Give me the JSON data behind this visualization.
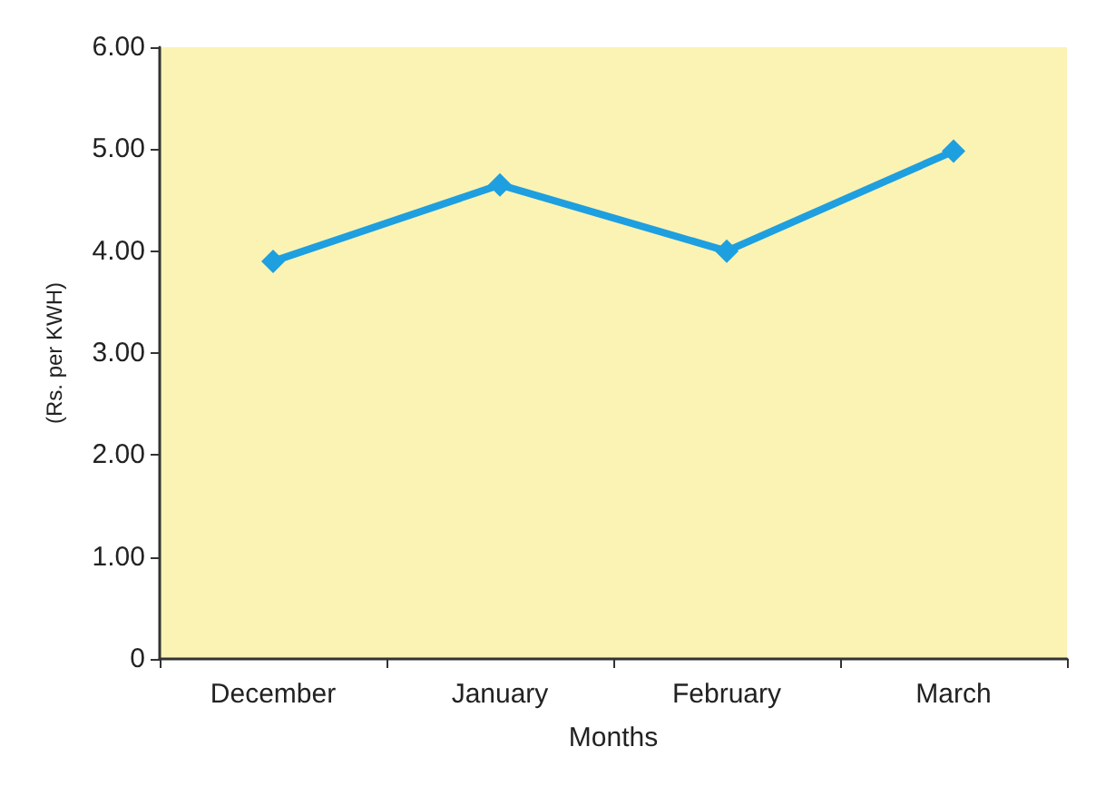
{
  "chart_data": {
    "type": "line",
    "xlabel": "Months",
    "ylabel": "(Rs. per KWH)",
    "categories": [
      "December",
      "January",
      "February",
      "March"
    ],
    "series": [
      {
        "color": "#1e9fe0",
        "values": [
          3.9,
          4.65,
          4.0,
          4.98
        ]
      }
    ],
    "ylim": [
      0,
      6
    ],
    "yticks": [
      0,
      {
        "value": 1,
        "label": "1.00"
      },
      {
        "value": 2,
        "label": "2.00"
      },
      {
        "value": 3,
        "label": "3.00"
      },
      {
        "value": 4,
        "label": "4.00"
      },
      {
        "value": 5,
        "label": "5.00"
      },
      {
        "value": 6,
        "label": "6.00"
      }
    ],
    "grid": false,
    "marker": "diamond",
    "line_style": "solid"
  }
}
